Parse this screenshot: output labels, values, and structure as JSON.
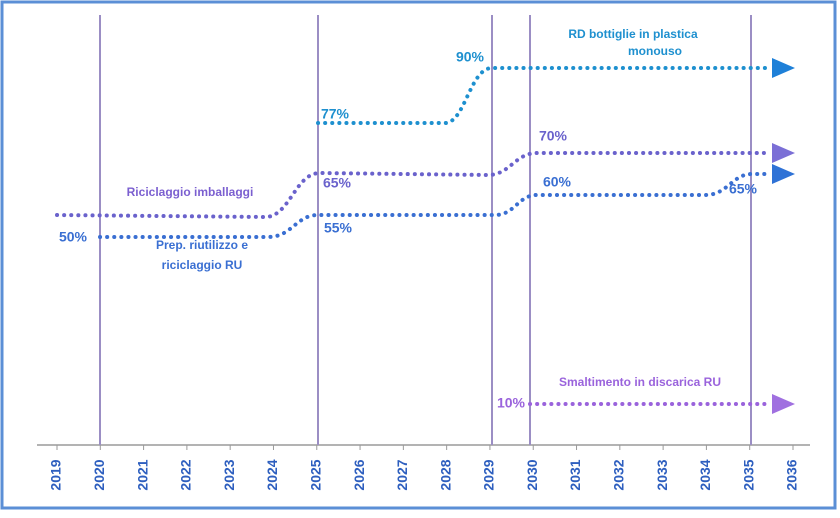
{
  "years": [
    "2019",
    "2020",
    "2021",
    "2022",
    "2023",
    "2024",
    "2025",
    "2026",
    "2027",
    "2028",
    "2029",
    "2030",
    "2031",
    "2032",
    "2033",
    "2034",
    "2035",
    "2036"
  ],
  "series": [
    {
      "name_lines": [
        "RD bottiglie in plastica",
        "monouso"
      ],
      "labels": [
        "77%",
        "90%"
      ]
    },
    {
      "name_lines": [
        "Riciclaggio imballaggi"
      ],
      "labels": [
        "65%",
        "70%"
      ]
    },
    {
      "name_lines": [
        "Prep. riutilizzo e",
        "riciclaggio RU"
      ],
      "labels": [
        "50%",
        "55%",
        "60%",
        "65%"
      ]
    },
    {
      "name_lines": [
        "Smaltimento in discarica RU"
      ],
      "labels": [
        "10%"
      ]
    }
  ]
}
